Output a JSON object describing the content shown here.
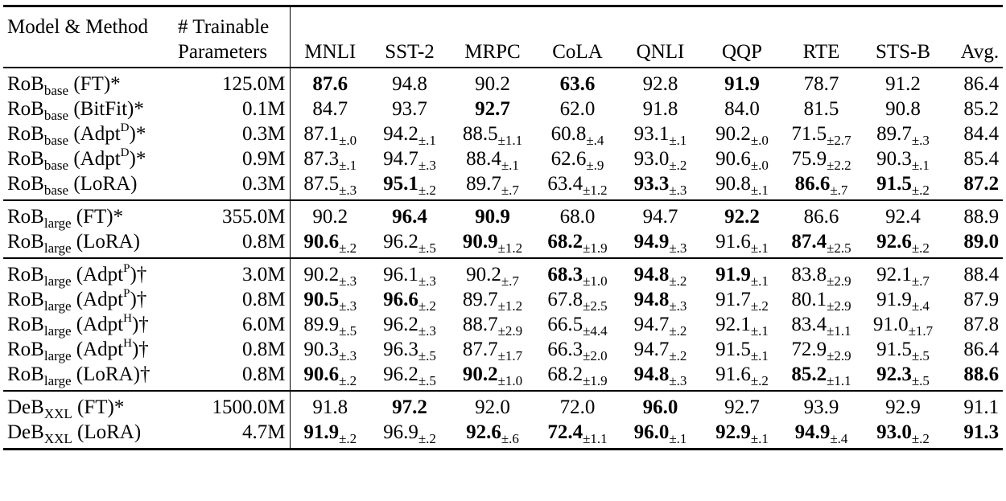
{
  "header": {
    "model": "Model & Method",
    "params_line1": "# Trainable",
    "params_line2": "Parameters",
    "tasks": [
      "MNLI",
      "SST-2",
      "MRPC",
      "CoLA",
      "QNLI",
      "QQP",
      "RTE",
      "STS-B",
      "Avg."
    ]
  },
  "groups": [
    {
      "rows": [
        {
          "base": "RoB",
          "sub": "base",
          "pre": " (FT)",
          "sup": "",
          "post": "*",
          "params": "125.0M",
          "cells": [
            [
              "87.6",
              "",
              true
            ],
            [
              "94.8",
              "",
              false
            ],
            [
              "90.2",
              "",
              false
            ],
            [
              "63.6",
              "",
              true
            ],
            [
              "92.8",
              "",
              false
            ],
            [
              "91.9",
              "",
              true
            ],
            [
              "78.7",
              "",
              false
            ],
            [
              "91.2",
              "",
              false
            ],
            [
              "86.4",
              "",
              false
            ]
          ]
        },
        {
          "base": "RoB",
          "sub": "base",
          "pre": " (BitFit)",
          "sup": "",
          "post": "*",
          "params": "0.1M",
          "cells": [
            [
              "84.7",
              "",
              false
            ],
            [
              "93.7",
              "",
              false
            ],
            [
              "92.7",
              "",
              true
            ],
            [
              "62.0",
              "",
              false
            ],
            [
              "91.8",
              "",
              false
            ],
            [
              "84.0",
              "",
              false
            ],
            [
              "81.5",
              "",
              false
            ],
            [
              "90.8",
              "",
              false
            ],
            [
              "85.2",
              "",
              false
            ]
          ]
        },
        {
          "base": "RoB",
          "sub": "base",
          "pre": " (Adpt",
          "sup": "D",
          "post": ")*",
          "params": "0.3M",
          "cells": [
            [
              "87.1",
              "±.0",
              false
            ],
            [
              "94.2",
              "±.1",
              false
            ],
            [
              "88.5",
              "±1.1",
              false
            ],
            [
              "60.8",
              "±.4",
              false
            ],
            [
              "93.1",
              "±.1",
              false
            ],
            [
              "90.2",
              "±.0",
              false
            ],
            [
              "71.5",
              "±2.7",
              false
            ],
            [
              "89.7",
              "±.3",
              false
            ],
            [
              "84.4",
              "",
              false
            ]
          ]
        },
        {
          "base": "RoB",
          "sub": "base",
          "pre": " (Adpt",
          "sup": "D",
          "post": ")*",
          "params": "0.9M",
          "cells": [
            [
              "87.3",
              "±.1",
              false
            ],
            [
              "94.7",
              "±.3",
              false
            ],
            [
              "88.4",
              "±.1",
              false
            ],
            [
              "62.6",
              "±.9",
              false
            ],
            [
              "93.0",
              "±.2",
              false
            ],
            [
              "90.6",
              "±.0",
              false
            ],
            [
              "75.9",
              "±2.2",
              false
            ],
            [
              "90.3",
              "±.1",
              false
            ],
            [
              "85.4",
              "",
              false
            ]
          ]
        },
        {
          "base": "RoB",
          "sub": "base",
          "pre": " (LoRA)",
          "sup": "",
          "post": "",
          "params": "0.3M",
          "cells": [
            [
              "87.5",
              "±.3",
              false
            ],
            [
              "95.1",
              "±.2",
              true
            ],
            [
              "89.7",
              "±.7",
              false
            ],
            [
              "63.4",
              "±1.2",
              false
            ],
            [
              "93.3",
              "±.3",
              true
            ],
            [
              "90.8",
              "±.1",
              false
            ],
            [
              "86.6",
              "±.7",
              true
            ],
            [
              "91.5",
              "±.2",
              true
            ],
            [
              "87.2",
              "",
              true
            ]
          ]
        }
      ]
    },
    {
      "rows": [
        {
          "base": "RoB",
          "sub": "large",
          "pre": " (FT)",
          "sup": "",
          "post": "*",
          "params": "355.0M",
          "cells": [
            [
              "90.2",
              "",
              false
            ],
            [
              "96.4",
              "",
              true
            ],
            [
              "90.9",
              "",
              true
            ],
            [
              "68.0",
              "",
              false
            ],
            [
              "94.7",
              "",
              false
            ],
            [
              "92.2",
              "",
              true
            ],
            [
              "86.6",
              "",
              false
            ],
            [
              "92.4",
              "",
              false
            ],
            [
              "88.9",
              "",
              false
            ]
          ]
        },
        {
          "base": "RoB",
          "sub": "large",
          "pre": " (LoRA)",
          "sup": "",
          "post": "",
          "params": "0.8M",
          "cells": [
            [
              "90.6",
              "±.2",
              true
            ],
            [
              "96.2",
              "±.5",
              false
            ],
            [
              "90.9",
              "±1.2",
              true
            ],
            [
              "68.2",
              "±1.9",
              true
            ],
            [
              "94.9",
              "±.3",
              true
            ],
            [
              "91.6",
              "±.1",
              false
            ],
            [
              "87.4",
              "±2.5",
              true
            ],
            [
              "92.6",
              "±.2",
              true
            ],
            [
              "89.0",
              "",
              true
            ]
          ]
        }
      ]
    },
    {
      "rows": [
        {
          "base": "RoB",
          "sub": "large",
          "pre": " (Adpt",
          "sup": "P",
          "post": ")†",
          "params": "3.0M",
          "cells": [
            [
              "90.2",
              "±.3",
              false
            ],
            [
              "96.1",
              "±.3",
              false
            ],
            [
              "90.2",
              "±.7",
              false
            ],
            [
              "68.3",
              "±1.0",
              true
            ],
            [
              "94.8",
              "±.2",
              true
            ],
            [
              "91.9",
              "±.1",
              true
            ],
            [
              "83.8",
              "±2.9",
              false
            ],
            [
              "92.1",
              "±.7",
              false
            ],
            [
              "88.4",
              "",
              false
            ]
          ]
        },
        {
          "base": "RoB",
          "sub": "large",
          "pre": " (Adpt",
          "sup": "P",
          "post": ")†",
          "params": "0.8M",
          "cells": [
            [
              "90.5",
              "±.3",
              true
            ],
            [
              "96.6",
              "±.2",
              true
            ],
            [
              "89.7",
              "±1.2",
              false
            ],
            [
              "67.8",
              "±2.5",
              false
            ],
            [
              "94.8",
              "±.3",
              true
            ],
            [
              "91.7",
              "±.2",
              false
            ],
            [
              "80.1",
              "±2.9",
              false
            ],
            [
              "91.9",
              "±.4",
              false
            ],
            [
              "87.9",
              "",
              false
            ]
          ]
        },
        {
          "base": "RoB",
          "sub": "large",
          "pre": " (Adpt",
          "sup": "H",
          "post": ")†",
          "params": "6.0M",
          "cells": [
            [
              "89.9",
              "±.5",
              false
            ],
            [
              "96.2",
              "±.3",
              false
            ],
            [
              "88.7",
              "±2.9",
              false
            ],
            [
              "66.5",
              "±4.4",
              false
            ],
            [
              "94.7",
              "±.2",
              false
            ],
            [
              "92.1",
              "±.1",
              false
            ],
            [
              "83.4",
              "±1.1",
              false
            ],
            [
              "91.0",
              "±1.7",
              false
            ],
            [
              "87.8",
              "",
              false
            ]
          ]
        },
        {
          "base": "RoB",
          "sub": "large",
          "pre": " (Adpt",
          "sup": "H",
          "post": ")†",
          "params": "0.8M",
          "cells": [
            [
              "90.3",
              "±.3",
              false
            ],
            [
              "96.3",
              "±.5",
              false
            ],
            [
              "87.7",
              "±1.7",
              false
            ],
            [
              "66.3",
              "±2.0",
              false
            ],
            [
              "94.7",
              "±.2",
              false
            ],
            [
              "91.5",
              "±.1",
              false
            ],
            [
              "72.9",
              "±2.9",
              false
            ],
            [
              "91.5",
              "±.5",
              false
            ],
            [
              "86.4",
              "",
              false
            ]
          ]
        },
        {
          "base": "RoB",
          "sub": "large",
          "pre": " (LoRA)",
          "sup": "",
          "post": "†",
          "params": "0.8M",
          "cells": [
            [
              "90.6",
              "±.2",
              true
            ],
            [
              "96.2",
              "±.5",
              false
            ],
            [
              "90.2",
              "±1.0",
              true
            ],
            [
              "68.2",
              "±1.9",
              false
            ],
            [
              "94.8",
              "±.3",
              true
            ],
            [
              "91.6",
              "±.2",
              false
            ],
            [
              "85.2",
              "±1.1",
              true
            ],
            [
              "92.3",
              "±.5",
              true
            ],
            [
              "88.6",
              "",
              true
            ]
          ]
        }
      ]
    },
    {
      "rows": [
        {
          "base": "DeB",
          "sub": "XXL",
          "pre": " (FT)",
          "sup": "",
          "post": "*",
          "params": "1500.0M",
          "cells": [
            [
              "91.8",
              "",
              false
            ],
            [
              "97.2",
              "",
              true
            ],
            [
              "92.0",
              "",
              false
            ],
            [
              "72.0",
              "",
              false
            ],
            [
              "96.0",
              "",
              true
            ],
            [
              "92.7",
              "",
              false
            ],
            [
              "93.9",
              "",
              false
            ],
            [
              "92.9",
              "",
              false
            ],
            [
              "91.1",
              "",
              false
            ]
          ]
        },
        {
          "base": "DeB",
          "sub": "XXL",
          "pre": " (LoRA)",
          "sup": "",
          "post": "",
          "params": "4.7M",
          "cells": [
            [
              "91.9",
              "±.2",
              true
            ],
            [
              "96.9",
              "±.2",
              false
            ],
            [
              "92.6",
              "±.6",
              true
            ],
            [
              "72.4",
              "±1.1",
              true
            ],
            [
              "96.0",
              "±.1",
              true
            ],
            [
              "92.9",
              "±.1",
              true
            ],
            [
              "94.9",
              "±.4",
              true
            ],
            [
              "93.0",
              "±.2",
              true
            ],
            [
              "91.3",
              "",
              true
            ]
          ]
        }
      ]
    }
  ]
}
